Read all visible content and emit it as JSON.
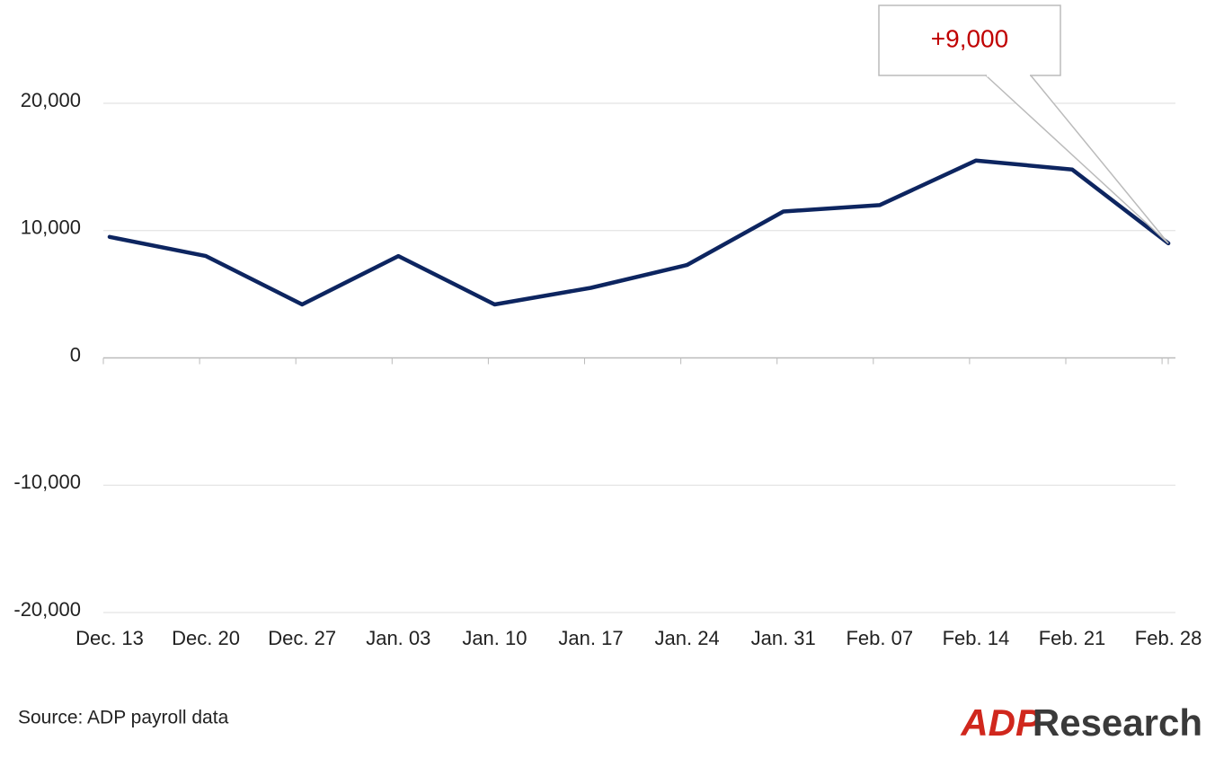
{
  "chart_data": {
    "type": "line",
    "categories": [
      "Dec. 13",
      "Dec. 20",
      "Dec. 27",
      "Jan. 03",
      "Jan. 10",
      "Jan. 17",
      "Jan. 24",
      "Jan. 31",
      "Feb. 07",
      "Feb. 14",
      "Feb. 21",
      "Feb. 28"
    ],
    "values": [
      9500,
      8000,
      4200,
      8000,
      4200,
      5500,
      7300,
      11500,
      12000,
      15500,
      14800,
      9000
    ],
    "color": "#0d2560",
    "ylim": [
      -20000,
      20000
    ],
    "yticks": [
      {
        "value": -20000,
        "label": "-20,000"
      },
      {
        "value": -10000,
        "label": "-10,000"
      },
      0,
      {
        "value": 10000,
        "label": "10,000"
      },
      {
        "value": 20000,
        "label": "20,000"
      }
    ],
    "grid": true,
    "annotation": "+9,000",
    "source": "Source: ADP payroll data",
    "logo": [
      "ADP",
      "Research"
    ]
  }
}
